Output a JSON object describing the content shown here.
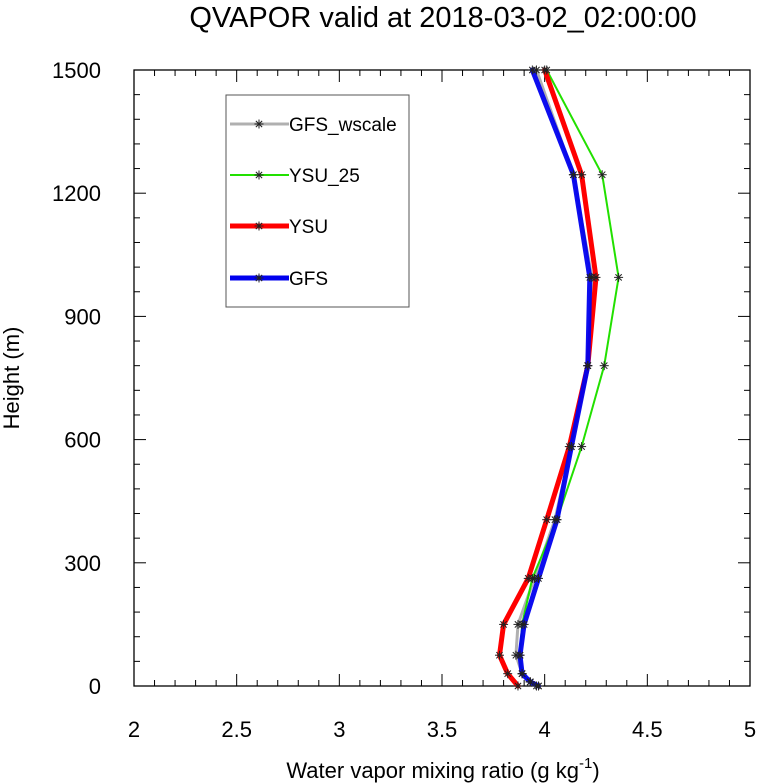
{
  "chart_data": {
    "type": "line",
    "title": "QVAPOR valid at 2018-03-02_02:00:00",
    "xlabel_main": "Water vapor mixing ratio (g kg",
    "xlabel_sup": "-1",
    "xlabel_tail": ")",
    "ylabel": "Height (m)",
    "xlim": [
      2,
      5
    ],
    "ylim": [
      0,
      1500
    ],
    "xticks": [
      2,
      2.5,
      3,
      3.5,
      4,
      4.5,
      5
    ],
    "xtick_labels": [
      "2",
      "2.5",
      "3",
      "3.5",
      "4",
      "4.5",
      "5"
    ],
    "yticks": [
      0,
      300,
      600,
      900,
      1200,
      1500
    ],
    "ytick_labels": [
      "0",
      "300",
      "600",
      "900",
      "1200",
      "1500"
    ],
    "legend_position": "upper-left",
    "series": [
      {
        "name": "GFS_wscale",
        "color": "#b0b0b0",
        "points": [
          [
            3.97,
            0
          ],
          [
            3.93,
            10
          ],
          [
            3.89,
            30
          ],
          [
            3.86,
            75
          ],
          [
            3.87,
            150
          ],
          [
            3.95,
            262
          ],
          [
            4.05,
            405
          ],
          [
            4.13,
            583
          ],
          [
            4.21,
            780
          ],
          [
            4.23,
            995
          ],
          [
            4.14,
            1245
          ],
          [
            3.96,
            1500
          ]
        ]
      },
      {
        "name": "YSU_25",
        "color": "#22e000",
        "points": [
          [
            3.96,
            0
          ],
          [
            3.93,
            10
          ],
          [
            3.89,
            30
          ],
          [
            3.88,
            75
          ],
          [
            3.89,
            150
          ],
          [
            3.94,
            262
          ],
          [
            4.06,
            405
          ],
          [
            4.18,
            583
          ],
          [
            4.29,
            780
          ],
          [
            4.36,
            995
          ],
          [
            4.28,
            1245
          ],
          [
            4.01,
            1500
          ]
        ]
      },
      {
        "name": "YSU",
        "color": "#ff0000",
        "points": [
          [
            3.87,
            0
          ],
          [
            3.82,
            30
          ],
          [
            3.78,
            75
          ],
          [
            3.8,
            150
          ],
          [
            3.92,
            262
          ],
          [
            4.01,
            405
          ],
          [
            4.12,
            583
          ],
          [
            4.21,
            780
          ],
          [
            4.25,
            995
          ],
          [
            4.18,
            1245
          ],
          [
            4.0,
            1500
          ]
        ]
      },
      {
        "name": "GFS",
        "color": "#0000ee",
        "points": [
          [
            3.97,
            0
          ],
          [
            3.93,
            10
          ],
          [
            3.89,
            30
          ],
          [
            3.88,
            75
          ],
          [
            3.9,
            150
          ],
          [
            3.97,
            262
          ],
          [
            4.06,
            405
          ],
          [
            4.13,
            583
          ],
          [
            4.21,
            780
          ],
          [
            4.22,
            995
          ],
          [
            4.14,
            1245
          ],
          [
            3.94,
            1500
          ]
        ]
      }
    ]
  }
}
